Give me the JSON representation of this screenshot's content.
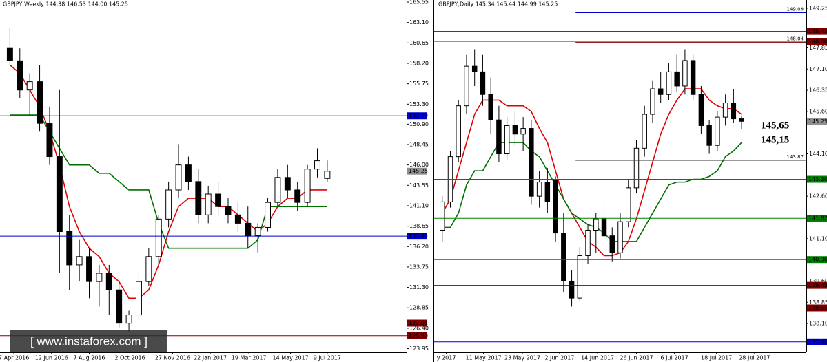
{
  "chart_data": [
    {
      "type": "candlestick",
      "title": "GBPJPY,Weekly  144.38 146.53 144.00 145.25",
      "watermark": "[ www.instaforex.com ]",
      "xlim": [
        -1,
        40
      ],
      "ylim": [
        123.5,
        165.8
      ],
      "xticks": [
        {
          "value": 0.4,
          "label": "7 Apr 2016"
        },
        {
          "value": 4.2,
          "label": "12 Jun 2016"
        },
        {
          "value": 8.0,
          "label": "7 Aug 2016"
        },
        {
          "value": 12.1,
          "label": "2 Oct 2016"
        },
        {
          "value": 16.4,
          "label": "27 Nov 2016"
        },
        {
          "value": 20.2,
          "label": "22 Jan 2017"
        },
        {
          "value": 24.1,
          "label": "19 Mar 2017"
        },
        {
          "value": 28.3,
          "label": "14 May 2017"
        },
        {
          "value": 32.0,
          "label": "9 Jul 2017"
        }
      ],
      "yticks": [
        165.55,
        {
          "value": 163.1,
          "label": "163.10"
        },
        160.65,
        {
          "value": 158.2,
          "label": "158.20"
        },
        155.75,
        {
          "value": 153.3,
          "label": "153.30"
        },
        {
          "value": 150.9,
          "label": "150.90"
        },
        148.45,
        {
          "value": 146,
          "label": "146.00"
        },
        143.55,
        {
          "value": 141.1,
          "label": "141.10"
        },
        138.65,
        {
          "value": 136.2,
          "label": "136.20"
        },
        133.75,
        {
          "value": 131.3,
          "label": "131.30"
        },
        128.85,
        {
          "value": 126.4,
          "label": "126.40"
        },
        123.95
      ],
      "ohlc": {
        "open": [
          160,
          158.5,
          155,
          156,
          151,
          147,
          138,
          134,
          135,
          132,
          133,
          131,
          127,
          128,
          132,
          135,
          139.5,
          143,
          146,
          144,
          140,
          142.5,
          141,
          140,
          139,
          137.5,
          138.5,
          141.5,
          144.5,
          143,
          141.5,
          145.5,
          144.38
        ],
        "high": [
          162.5,
          160,
          157,
          158,
          153,
          155,
          140,
          137,
          136,
          134,
          134,
          132,
          128.5,
          133,
          136,
          140,
          144,
          148.5,
          147,
          145.5,
          143.5,
          144,
          142,
          141.5,
          141,
          139,
          142,
          145.5,
          146,
          144,
          146,
          148,
          146.53
        ],
        "low": [
          158,
          154,
          152,
          150,
          146,
          133,
          131,
          132,
          130,
          129,
          128,
          126.5,
          126,
          127.5,
          131.5,
          134,
          138.5,
          142,
          143,
          139,
          139,
          140,
          139,
          138,
          136,
          135.5,
          138,
          141,
          142,
          140.5,
          141,
          144.5,
          144
        ],
        "close": [
          158.5,
          155,
          156,
          151,
          147,
          138,
          134,
          135,
          132,
          133,
          131,
          127,
          128,
          132,
          135,
          139.5,
          143,
          146,
          144,
          140,
          142.5,
          141,
          140,
          139,
          137.5,
          138.5,
          141.5,
          144.5,
          143,
          141.5,
          145.5,
          146.5,
          145.25
        ]
      },
      "series": [
        {
          "color": "#e00000",
          "values": [
            158,
            157,
            155,
            153,
            150,
            146,
            141,
            138,
            136,
            135,
            133,
            132,
            130,
            130,
            131,
            134,
            138,
            141,
            142,
            142,
            142,
            141,
            141,
            140,
            139,
            138,
            139,
            141,
            142,
            142,
            143,
            143,
            143
          ]
        },
        {
          "color": "#007000",
          "values": [
            152,
            152,
            152,
            152,
            150,
            148,
            146,
            146,
            146,
            145,
            145,
            144,
            143,
            143,
            143,
            139,
            136,
            136,
            136,
            136,
            136,
            136,
            136,
            136,
            136,
            137,
            141,
            141,
            141,
            141,
            141,
            141,
            141
          ]
        }
      ],
      "levels": [
        {
          "value": 151.9,
          "label": "151.90",
          "color": "#0000cc"
        },
        {
          "value": 137.45,
          "label": "137.45",
          "color": "#0000cc"
        },
        {
          "value": 127.01,
          "label": "127.01",
          "color": "#800000"
        },
        {
          "value": 125.5,
          "label": "125.50",
          "color": "#800000"
        }
      ],
      "last_price": {
        "value": 145.25,
        "label": "145.25",
        "color": "#909090"
      }
    },
    {
      "type": "candlestick",
      "title": "GBPJPY,Daily  145.34 145.44 144.99 145.25",
      "xlim": [
        -1,
        45
      ],
      "ylim": [
        137.08,
        149.54
      ],
      "xticks": [
        {
          "value": 0.5,
          "label": "y 2017"
        },
        {
          "value": 5.1,
          "label": "11 May 2017"
        },
        {
          "value": 9.9,
          "label": "23 May 2017"
        },
        {
          "value": 14.5,
          "label": "2 Jun 2017"
        },
        {
          "value": 19.2,
          "label": "14 Jun 2017"
        },
        {
          "value": 24.0,
          "label": "26 Jun 2017"
        },
        {
          "value": 28.7,
          "label": "6 Jul 2017"
        },
        {
          "value": 33.9,
          "label": "18 Jul 2017"
        },
        {
          "value": 38.6,
          "label": "28 Jul 2017"
        }
      ],
      "yticks": [
        149.25,
        147.85,
        {
          "value": 147.1,
          "label": "147.10"
        },
        146.35,
        {
          "value": 145.6,
          "label": "145.60"
        },
        {
          "value": 144.1,
          "label": "144.10"
        },
        {
          "value": 142.6,
          "label": "142.60"
        },
        {
          "value": 141.1,
          "label": "141.10"
        },
        {
          "value": 139.6,
          "label": "139.60"
        },
        138.85,
        {
          "value": 138.1,
          "label": "138.10"
        }
      ],
      "ohlc": {
        "open": [
          141.4,
          142.4,
          144.0,
          145.8,
          147.2,
          147.0,
          146.2,
          145.3,
          144.1,
          145.1,
          144.8,
          145.0,
          142.6,
          143.1,
          143.2,
          141.3,
          139.6,
          139.0,
          140.5,
          141.4,
          141.8,
          141.2,
          140.6,
          141.7,
          142.9,
          144.3,
          145.5,
          146.4,
          146.2,
          147.0,
          146.5,
          147.4,
          146.2,
          145.1,
          144.4,
          145.4,
          145.9,
          145.34
        ],
        "high": [
          142.6,
          144.2,
          146.0,
          147.6,
          147.8,
          147.6,
          146.8,
          145.8,
          145.4,
          145.6,
          145.4,
          145.3,
          143.5,
          143.6,
          143.3,
          142.0,
          140.0,
          140.8,
          141.6,
          142.0,
          142.3,
          141.5,
          142.0,
          143.2,
          144.6,
          145.8,
          146.7,
          147.0,
          147.3,
          147.6,
          147.8,
          147.6,
          146.5,
          145.3,
          145.6,
          146.2,
          146.4,
          145.44
        ],
        "low": [
          141.0,
          142.2,
          143.8,
          145.5,
          146.5,
          145.8,
          144.8,
          143.8,
          143.9,
          144.4,
          144.2,
          142.3,
          142.2,
          142.0,
          141.0,
          139.2,
          138.7,
          138.9,
          140.2,
          140.6,
          140.9,
          140.3,
          140.4,
          141.5,
          142.7,
          144.0,
          145.2,
          145.9,
          146.0,
          146.3,
          146.2,
          146.0,
          144.8,
          144.1,
          144.2,
          145.1,
          145.2,
          144.99
        ],
        "close": [
          142.4,
          144.0,
          145.8,
          147.2,
          147.0,
          146.2,
          145.3,
          144.1,
          145.1,
          144.8,
          145.0,
          142.6,
          143.1,
          142.4,
          141.3,
          139.6,
          139.0,
          140.5,
          141.4,
          141.8,
          141.2,
          140.6,
          141.7,
          142.9,
          144.3,
          145.5,
          146.4,
          146.2,
          147.0,
          146.5,
          147.4,
          146.2,
          145.1,
          144.4,
          145.4,
          145.9,
          145.34,
          145.25
        ]
      },
      "series": [
        {
          "color": "#e00000",
          "values": [
            142,
            142.5,
            143.5,
            144.5,
            145.5,
            146,
            146,
            146,
            145.8,
            145.8,
            145.8,
            145.6,
            145,
            144.5,
            143.5,
            142.5,
            142,
            141.5,
            141,
            140.8,
            140.5,
            140.5,
            140.6,
            141,
            141.8,
            142.8,
            143.8,
            144.8,
            145.5,
            146,
            146.4,
            146.4,
            146.4,
            146,
            145.8,
            145.7,
            145.7,
            145.5
          ]
        },
        {
          "color": "#007000",
          "values": [
            141.5,
            141.5,
            142,
            143,
            143.5,
            143.5,
            144,
            144.5,
            144.5,
            144.5,
            144.5,
            144.2,
            144,
            143.5,
            143,
            142.5,
            142,
            141.8,
            141.6,
            141.5,
            141.3,
            141,
            141,
            141,
            141,
            141.5,
            142,
            142.5,
            143,
            143.1,
            143.1,
            143.2,
            143.2,
            143.3,
            143.5,
            144,
            144.2,
            144.5
          ]
        }
      ],
      "levels": [
        {
          "value": 148.43,
          "label": "148.43",
          "color": "#800000"
        },
        {
          "value": 148.08,
          "label": "148.08",
          "color": "#800000"
        },
        {
          "value": 143.2,
          "label": "143.20",
          "color": "#008000"
        },
        {
          "value": 141.82,
          "label": "141.82",
          "color": "#008000"
        },
        {
          "value": 140.36,
          "label": "140.36",
          "color": "#008000"
        },
        {
          "value": 139.45,
          "label": "139.45",
          "color": "#800000"
        },
        {
          "value": 138.65,
          "label": "138.65",
          "color": "#800000"
        },
        {
          "value": 137.45,
          "label": "137.45",
          "color": "#0000cc"
        }
      ],
      "lines": [
        {
          "value": 149.09,
          "label": "149.09",
          "color": "#0000cc"
        },
        {
          "value": 148.04,
          "label": "148.04",
          "color": "#800000"
        },
        {
          "value": 143.87,
          "label": "143.87",
          "color": "#333333"
        }
      ],
      "annotations": [
        "145,65",
        "145,15"
      ],
      "last_price": {
        "value": 145.25,
        "label": "145.25",
        "color": "#909090"
      }
    }
  ]
}
